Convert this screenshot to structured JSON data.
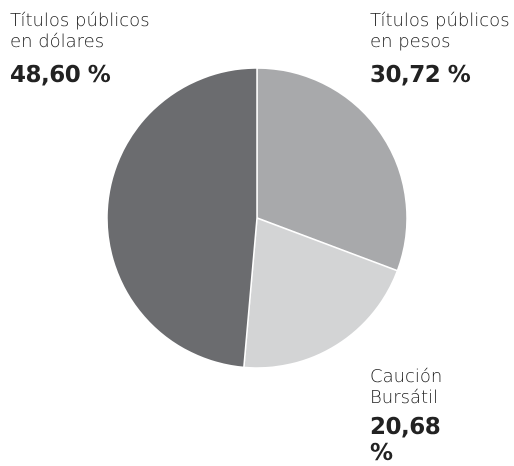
{
  "chart_data": {
    "type": "pie",
    "categories": [
      "Títulos públicos en pesos",
      "Caución Bursátil",
      "Títulos públicos en dólares"
    ],
    "values": [
      30.72,
      20.68,
      48.6
    ],
    "value_labels": [
      "30,72 %",
      "20,68 %",
      "48,60 %"
    ],
    "colors": [
      "#a8a9ab",
      "#d3d4d5",
      "#6b6c6f"
    ]
  }
}
